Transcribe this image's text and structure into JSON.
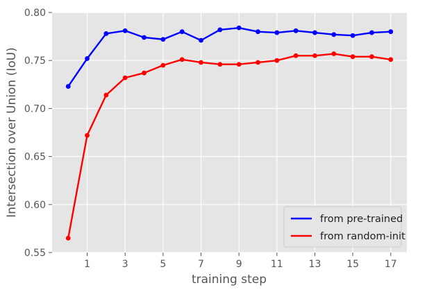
{
  "chart_data": {
    "type": "line",
    "title": "",
    "xlabel": "training step",
    "ylabel": "Intersection over Union (IoU)",
    "x": [
      0,
      1,
      2,
      3,
      4,
      5,
      6,
      7,
      8,
      9,
      10,
      11,
      12,
      13,
      14,
      15,
      16,
      17
    ],
    "xticks": [
      1,
      3,
      5,
      7,
      9,
      11,
      13,
      15,
      17
    ],
    "xlim": [
      -0.85,
      17.85
    ],
    "yticks": [
      0.55,
      0.6,
      0.65,
      0.7,
      0.75,
      0.8
    ],
    "ytick_labels": [
      "0.55",
      "0.60",
      "0.65",
      "0.70",
      "0.75",
      "0.80"
    ],
    "ylim": [
      0.55,
      0.8
    ],
    "grid": true,
    "legend_position": "bottom-right",
    "series": [
      {
        "name": "from pre-trained",
        "color": "#0000ff",
        "values": [
          0.723,
          0.752,
          0.778,
          0.781,
          0.774,
          0.772,
          0.78,
          0.771,
          0.782,
          0.784,
          0.78,
          0.779,
          0.781,
          0.779,
          0.777,
          0.776,
          0.779,
          0.78
        ]
      },
      {
        "name": "from random-init",
        "color": "#ff0000",
        "values": [
          0.565,
          0.672,
          0.714,
          0.732,
          0.737,
          0.745,
          0.751,
          0.748,
          0.746,
          0.746,
          0.748,
          0.75,
          0.755,
          0.755,
          0.757,
          0.754,
          0.754,
          0.751
        ]
      }
    ]
  }
}
